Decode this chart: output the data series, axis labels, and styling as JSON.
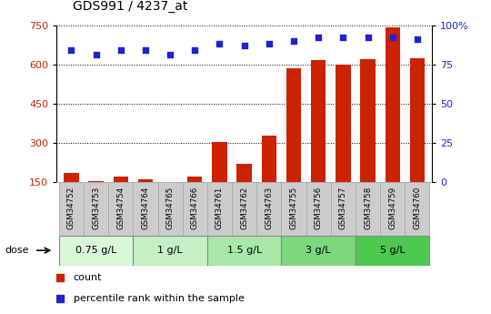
{
  "title": "GDS991 / 4237_at",
  "samples": [
    "GSM34752",
    "GSM34753",
    "GSM34754",
    "GSM34764",
    "GSM34765",
    "GSM34766",
    "GSM34761",
    "GSM34762",
    "GSM34763",
    "GSM34755",
    "GSM34756",
    "GSM34757",
    "GSM34758",
    "GSM34759",
    "GSM34760"
  ],
  "counts": [
    185,
    155,
    170,
    160,
    148,
    170,
    302,
    220,
    328,
    585,
    615,
    600,
    620,
    742,
    625
  ],
  "percentiles": [
    84,
    81,
    84,
    84,
    81,
    84,
    88,
    87,
    88,
    90,
    92,
    92,
    92,
    92,
    91
  ],
  "dose_groups": [
    {
      "label": "0.75 g/L",
      "start": 0,
      "end": 3
    },
    {
      "label": "1 g/L",
      "start": 3,
      "end": 6
    },
    {
      "label": "1.5 g/L",
      "start": 6,
      "end": 9
    },
    {
      "label": "3 g/L",
      "start": 9,
      "end": 12
    },
    {
      "label": "5 g/L",
      "start": 12,
      "end": 15
    }
  ],
  "dose_colors": [
    "#d9f7d9",
    "#c5f0c5",
    "#a8e8a8",
    "#7dd87d",
    "#4dc94d"
  ],
  "ylim_left": [
    150,
    750
  ],
  "ylim_right": [
    0,
    100
  ],
  "yticks_left": [
    150,
    300,
    450,
    600,
    750
  ],
  "yticks_right": [
    0,
    25,
    50,
    75,
    100
  ],
  "bar_color": "#cc2200",
  "dot_color": "#2222cc",
  "sample_cell_color": "#cccccc",
  "dose_label": "dose"
}
